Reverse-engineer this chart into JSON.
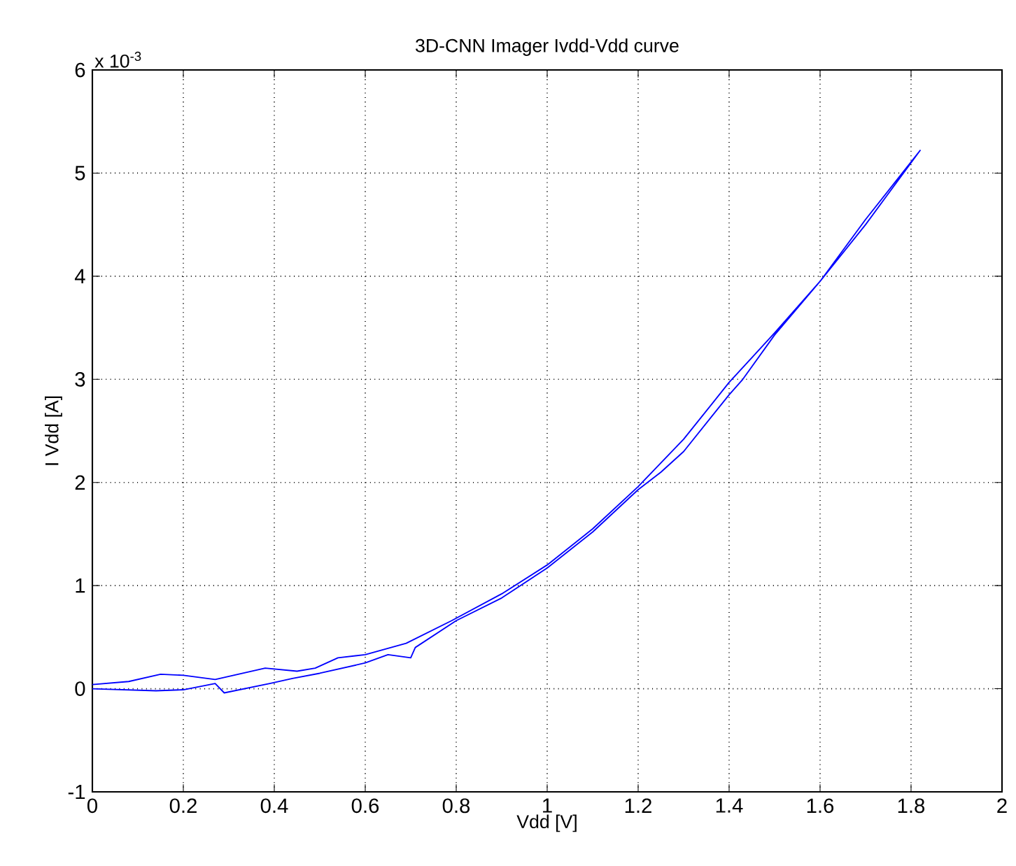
{
  "chart_data": {
    "type": "line",
    "title": "3D-CNN Imager  Ivdd-Vdd curve",
    "xlabel": "Vdd [V]",
    "ylabel": "I Vdd [A]",
    "annotations": [
      "x 10$^{-3}$"
    ],
    "series": [
      {
        "color": "#0000ff",
        "x": [
          0,
          0.08,
          0.15,
          0.2,
          0.27,
          0.38,
          0.45,
          0.49,
          0.54,
          0.6,
          0.69,
          0.79,
          0.9,
          1.0,
          1.1,
          1.2,
          1.3,
          1.4,
          1.5,
          1.6,
          1.7,
          1.82,
          1.8,
          1.7,
          1.6,
          1.5,
          1.43,
          1.4,
          1.3,
          1.25,
          1.2,
          1.1,
          1.0,
          0.9,
          0.8,
          0.71,
          0.7,
          0.65,
          0.6,
          0.5,
          0.44,
          0.39,
          0.29,
          0.27,
          0.2,
          0.14,
          0
        ],
        "values": [
          0.04,
          0.07,
          0.14,
          0.13,
          0.09,
          0.2,
          0.17,
          0.2,
          0.3,
          0.33,
          0.44,
          0.66,
          0.92,
          1.2,
          1.55,
          1.96,
          2.42,
          2.97,
          3.45,
          3.95,
          4.55,
          5.22,
          5.1,
          4.5,
          3.95,
          3.43,
          3.0,
          2.85,
          2.3,
          2.1,
          1.93,
          1.52,
          1.17,
          0.88,
          0.66,
          0.4,
          0.3,
          0.33,
          0.25,
          0.15,
          0.1,
          0.05,
          -0.04,
          0.05,
          -0.01,
          -0.02,
          0
        ]
      }
    ],
    "xlim": [
      0,
      2
    ],
    "ylim": [
      -1,
      6
    ],
    "xticks": [
      0,
      0.2,
      0.4,
      0.6,
      0.8,
      1,
      1.2,
      1.4,
      1.6,
      1.8,
      2
    ],
    "yticks": [
      -1,
      0,
      1,
      2,
      3,
      4,
      5,
      6
    ],
    "grid": true,
    "marker": "none",
    "line_style": "solid"
  }
}
